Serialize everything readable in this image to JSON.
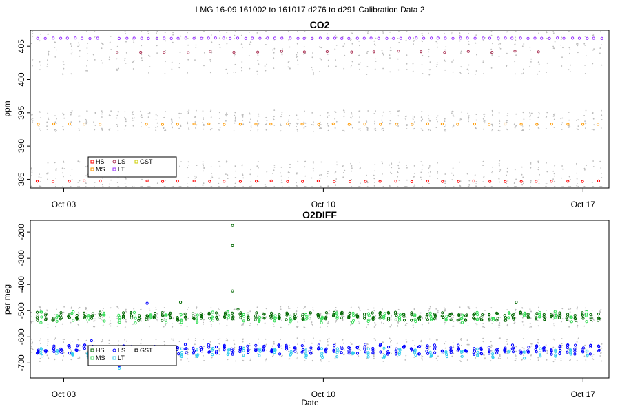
{
  "figure": {
    "suptitle": "LMG   16-09    161002 to 161017    d276 to d291   Calibration Data 2",
    "xlabel": "Date"
  },
  "chart_data": [
    {
      "type": "scatter",
      "title": "CO2",
      "ylabel": "ppm",
      "xlabel": "",
      "x_unit": "day of month (Oct 2016)",
      "xlim": [
        2.1,
        17.7
      ],
      "ylim": [
        383.7,
        407.4
      ],
      "yticks": [
        385,
        390,
        395,
        400,
        405
      ],
      "ytick_labels": [
        "385",
        "390",
        "395",
        "400",
        "405"
      ],
      "xticks": [
        3,
        10,
        17
      ],
      "xtick_labels": [
        "Oct 03",
        "Oct 10",
        "Oct 17"
      ],
      "legend": {
        "placement": "lower-left",
        "entries": [
          "HS",
          "LS",
          "GST",
          "MS",
          "LT"
        ]
      },
      "series": [
        {
          "name": "HS",
          "color": "#ff0000",
          "start": 2.3,
          "end": 17.5,
          "step": 0.42,
          "y": 384.7,
          "jitter": 0.05,
          "gap": [
            4.0,
            4.9
          ]
        },
        {
          "name": "LS",
          "color": "#aa3355",
          "start": 4.45,
          "end": 15.8,
          "step": 0.63,
          "y": 404.2,
          "jitter": 0.2,
          "gap": [
            20,
            20
          ]
        },
        {
          "name": "GST",
          "color": "#cccc00",
          "start": 20,
          "end": 20,
          "step": 1,
          "y": 390,
          "jitter": 0,
          "gap": [
            20,
            20
          ]
        },
        {
          "name": "MS",
          "color": "#ff9900",
          "start": 2.3,
          "end": 17.5,
          "step": 0.42,
          "y": 393.3,
          "jitter": 0.05,
          "gap": [
            4.0,
            4.9
          ]
        },
        {
          "name": "LT",
          "color": "#9933ff",
          "start": 2.3,
          "end": 17.5,
          "step": 0.2,
          "y": 406.2,
          "jitter": 0.04,
          "gap": [
            4.05,
            4.45
          ]
        }
      ],
      "background": {
        "color": "#bbbbbb",
        "bands": [
          {
            "y": 404.2,
            "spread": 3.5
          },
          {
            "y": 393.8,
            "spread": 1.6
          },
          {
            "y": 385.2,
            "spread": 2.6
          }
        ]
      }
    },
    {
      "type": "scatter",
      "title": "O2DIFF",
      "ylabel": "per meg",
      "xlabel": "Date",
      "x_unit": "day of month (Oct 2016)",
      "xlim": [
        2.1,
        17.7
      ],
      "ylim": [
        -757,
        -155
      ],
      "yticks": [
        -700,
        -600,
        -500,
        -400,
        -300,
        -200
      ],
      "ytick_labels": [
        "-700",
        "-600",
        "-500",
        "-400",
        "-300",
        "-200"
      ],
      "xticks": [
        3,
        10,
        17
      ],
      "xtick_labels": [
        "Oct 03",
        "Oct 10",
        "Oct 17"
      ],
      "legend": {
        "placement": "lower-left",
        "entries": [
          "HS",
          "LS",
          "GST",
          "MS",
          "LT"
        ]
      },
      "series": [
        {
          "name": "HS",
          "color": "#006600",
          "start": 2.3,
          "end": 17.5,
          "step": 0.21,
          "y": -522,
          "jitter": 10,
          "gap": [
            4.1,
            4.5
          ]
        },
        {
          "name": "LS",
          "color": "#0000ff",
          "start": 2.3,
          "end": 17.5,
          "step": 0.21,
          "y": -648,
          "jitter": 12,
          "gap": [
            4.1,
            4.5
          ]
        },
        {
          "name": "GST",
          "color": "#000000",
          "start": 20,
          "end": 20,
          "step": 1,
          "y": -600,
          "jitter": 0,
          "gap": [
            20,
            20
          ]
        },
        {
          "name": "MS",
          "color": "#33dd55",
          "start": 2.4,
          "end": 17.5,
          "step": 0.42,
          "y": -525,
          "jitter": 14,
          "gap": [
            4.1,
            4.5
          ]
        },
        {
          "name": "LT",
          "color": "#33ccee",
          "start": 2.4,
          "end": 17.5,
          "step": 0.42,
          "y": -662,
          "jitter": 12,
          "gap": [
            4.1,
            4.5
          ]
        }
      ],
      "outliers": [
        {
          "x": 7.55,
          "y": -175,
          "color": "#006600"
        },
        {
          "x": 7.55,
          "y": -252,
          "color": "#006600"
        },
        {
          "x": 7.55,
          "y": -425,
          "color": "#006600"
        },
        {
          "x": 5.25,
          "y": -472,
          "color": "#0000ff"
        },
        {
          "x": 6.15,
          "y": -468,
          "color": "#006600"
        },
        {
          "x": 15.2,
          "y": -468,
          "color": "#006600"
        },
        {
          "x": 4.5,
          "y": -720,
          "color": "#33ccee"
        },
        {
          "x": 4.5,
          "y": -710,
          "color": "#0000ff"
        },
        {
          "x": 7.7,
          "y": -495,
          "color": "#006600"
        },
        {
          "x": 3.75,
          "y": -615,
          "color": "#0000ff"
        }
      ],
      "background": {
        "color": "#bbbbbb",
        "bands": [
          {
            "y": -525,
            "spread": 40
          },
          {
            "y": -650,
            "spread": 45
          }
        ]
      }
    }
  ],
  "legend_markers": {
    "HS": "square",
    "LS": "circle",
    "GST": "square",
    "MS": "square",
    "LT": "square"
  }
}
